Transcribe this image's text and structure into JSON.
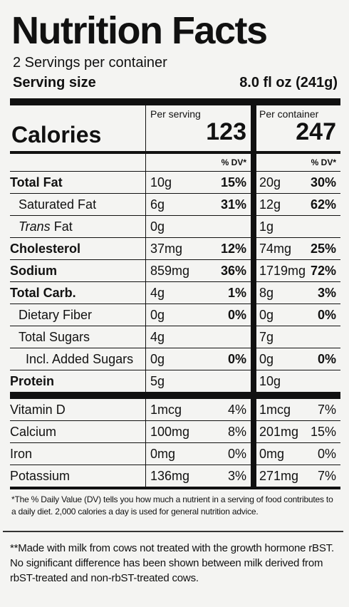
{
  "title": "Nutrition Facts",
  "servings": "2 Servings per container",
  "serving_size": {
    "label": "Serving size",
    "value": "8.0 fl oz (241g)"
  },
  "calories": {
    "label": "Calories",
    "per_serving": {
      "heading": "Per serving",
      "amount": "123",
      "dv_heading": "% DV*"
    },
    "per_container": {
      "heading": "Per container",
      "amount": "247",
      "dv_heading": "% DV*"
    }
  },
  "nutrients": [
    {
      "name": "Total Fat",
      "serving": {
        "amount": "10g",
        "dv": "15%"
      },
      "container": {
        "amount": "20g",
        "dv": "30%"
      }
    },
    {
      "name": "Saturated Fat",
      "serving": {
        "amount": "6g",
        "dv": "31%"
      },
      "container": {
        "amount": "12g",
        "dv": "62%"
      }
    },
    {
      "name_italic": "Trans",
      "name": "Fat",
      "serving": {
        "amount": "0g"
      },
      "container": {
        "amount": "1g"
      }
    },
    {
      "name": "Cholesterol",
      "serving": {
        "amount": "37mg",
        "dv": "12%"
      },
      "container": {
        "amount": "74mg",
        "dv": "25%"
      }
    },
    {
      "name": "Sodium",
      "serving": {
        "amount": "859mg",
        "dv": "36%"
      },
      "container": {
        "amount": "1719mg",
        "dv": "72%"
      }
    },
    {
      "name": "Total Carb.",
      "serving": {
        "amount": "4g",
        "dv": "1%"
      },
      "container": {
        "amount": "8g",
        "dv": "3%"
      }
    },
    {
      "name": "Dietary Fiber",
      "serving": {
        "amount": "0g",
        "dv": "0%"
      },
      "container": {
        "amount": "0g",
        "dv": "0%"
      }
    },
    {
      "name": "Total Sugars",
      "serving": {
        "amount": "4g"
      },
      "container": {
        "amount": "7g"
      }
    },
    {
      "name": "Incl. Added Sugars",
      "serving": {
        "amount": "0g",
        "dv": "0%"
      },
      "container": {
        "amount": "0g",
        "dv": "0%"
      }
    },
    {
      "name": "Protein",
      "serving": {
        "amount": "5g"
      },
      "container": {
        "amount": "10g"
      }
    }
  ],
  "vitamins": [
    {
      "name": "Vitamin D",
      "serving": {
        "amount": "1mcg",
        "dv": "4%"
      },
      "container": {
        "amount": "1mcg",
        "dv": "7%"
      }
    },
    {
      "name": "Calcium",
      "serving": {
        "amount": "100mg",
        "dv": "8%"
      },
      "container": {
        "amount": "201mg",
        "dv": "15%"
      }
    },
    {
      "name": "Iron",
      "serving": {
        "amount": "0mg",
        "dv": "0%"
      },
      "container": {
        "amount": "0mg",
        "dv": "0%"
      }
    },
    {
      "name": "Potassium",
      "serving": {
        "amount": "136mg",
        "dv": "3%"
      },
      "container": {
        "amount": "271mg",
        "dv": "7%"
      }
    }
  ],
  "footnote": "*The % Daily Value (DV) tells you how much a nutrient in a serving of food contributes to a daily diet. 2,000 calories a day is used for general nutrition advice.",
  "note": "**Made with milk from cows not treated with the growth hormone rBST. No significant difference has been shown between milk derived from rbST-treated and non-rbST-treated cows."
}
